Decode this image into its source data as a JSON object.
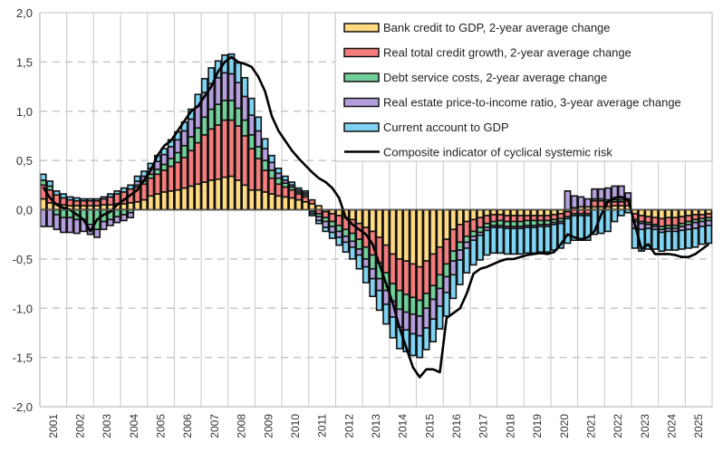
{
  "chart_data": {
    "type": "bar",
    "stacked": true,
    "frequency": "quarterly",
    "title": "",
    "xlabel": "",
    "ylabel": "",
    "ylim": [
      -2.0,
      2.0
    ],
    "yticks": [
      "2,0",
      "1,5",
      "1,0",
      "0,5",
      "0,0",
      "-0,5",
      "-1,0",
      "-1,5",
      "-2,0"
    ],
    "ytick_values": [
      2.0,
      1.5,
      1.0,
      0.5,
      0.0,
      -0.5,
      -1.0,
      -1.5,
      -2.0
    ],
    "xticks": [
      "2001",
      "2002",
      "2003",
      "2004",
      "2005",
      "2006",
      "2007",
      "2008",
      "2009",
      "2010",
      "2011",
      "2012",
      "2013",
      "2014",
      "2015",
      "2016",
      "2017",
      "2018",
      "2019",
      "2020",
      "2021",
      "2022",
      "2023",
      "2024",
      "2025"
    ],
    "start": "2001Q1",
    "n_quarters": 100,
    "grid": "horizontal dashed at y ticks; vertical solid at year boundaries",
    "legend_position": "top-right",
    "series": [
      {
        "name": "Bank credit to GDP, 2-year average change",
        "color": "#FFDA80",
        "kind": "bar",
        "values": [
          0.11,
          0.07,
          0.06,
          0.05,
          0.04,
          0.04,
          0.04,
          0.04,
          0.04,
          0.05,
          0.05,
          0.06,
          0.06,
          0.07,
          0.08,
          0.1,
          0.14,
          0.16,
          0.18,
          0.19,
          0.2,
          0.22,
          0.24,
          0.26,
          0.28,
          0.3,
          0.31,
          0.33,
          0.34,
          0.3,
          0.25,
          0.2,
          0.2,
          0.18,
          0.16,
          0.14,
          0.13,
          0.12,
          0.1,
          0.08,
          0.06,
          0.04,
          -0.02,
          -0.04,
          -0.06,
          -0.08,
          -0.1,
          -0.14,
          -0.18,
          -0.22,
          -0.28,
          -0.36,
          -0.45,
          -0.5,
          -0.52,
          -0.55,
          -0.58,
          -0.52,
          -0.45,
          -0.38,
          -0.3,
          -0.2,
          -0.15,
          -0.12,
          -0.1,
          -0.08,
          -0.06,
          -0.05,
          -0.05,
          -0.06,
          -0.06,
          -0.06,
          -0.06,
          -0.06,
          -0.06,
          -0.06,
          -0.05,
          -0.04,
          -0.02,
          0.02,
          0.03,
          0.03,
          0.03,
          0.03,
          0.03,
          0.04,
          0.04,
          0.04,
          -0.04,
          -0.06,
          -0.07,
          -0.08,
          -0.09,
          -0.08,
          -0.08,
          -0.07,
          -0.06,
          -0.05,
          -0.05,
          -0.04
        ]
      },
      {
        "name": "Real total credit growth, 2-year average change",
        "color": "#F47C7C",
        "kind": "bar",
        "values": [
          0.14,
          0.13,
          0.09,
          0.07,
          0.06,
          0.05,
          0.05,
          0.05,
          0.05,
          0.06,
          0.08,
          0.1,
          0.12,
          0.14,
          0.15,
          0.16,
          0.18,
          0.2,
          0.22,
          0.25,
          0.28,
          0.31,
          0.36,
          0.42,
          0.48,
          0.52,
          0.55,
          0.58,
          0.57,
          0.55,
          0.5,
          0.42,
          0.32,
          0.22,
          0.16,
          0.12,
          0.1,
          0.08,
          0.06,
          0.05,
          0.04,
          -0.04,
          -0.06,
          -0.08,
          -0.1,
          -0.12,
          -0.14,
          -0.16,
          -0.2,
          -0.24,
          -0.26,
          -0.28,
          -0.3,
          -0.32,
          -0.34,
          -0.34,
          -0.34,
          -0.33,
          -0.32,
          -0.28,
          -0.25,
          -0.22,
          -0.18,
          -0.15,
          -0.12,
          -0.1,
          -0.08,
          -0.07,
          -0.06,
          -0.06,
          -0.06,
          -0.06,
          -0.05,
          -0.05,
          -0.05,
          -0.05,
          -0.05,
          -0.05,
          -0.05,
          -0.04,
          -0.04,
          -0.04,
          0.06,
          0.06,
          0.05,
          0.04,
          0.04,
          0.05,
          -0.06,
          -0.06,
          -0.06,
          -0.07,
          -0.08,
          -0.08,
          -0.08,
          -0.07,
          -0.06,
          -0.05,
          -0.04,
          -0.04
        ]
      },
      {
        "name": "Debt service costs, 2-year average change",
        "color": "#72CF9A",
        "kind": "bar",
        "values": [
          0.05,
          0.04,
          -0.05,
          -0.08,
          -0.08,
          -0.1,
          -0.1,
          -0.15,
          -0.2,
          -0.12,
          -0.1,
          -0.07,
          -0.05,
          -0.03,
          0.02,
          0.03,
          0.04,
          0.05,
          0.06,
          0.08,
          0.1,
          0.12,
          0.14,
          0.15,
          0.18,
          0.2,
          0.21,
          0.2,
          0.2,
          0.18,
          0.16,
          0.14,
          0.12,
          0.1,
          0.08,
          0.06,
          0.04,
          0.03,
          0.02,
          0.02,
          -0.02,
          -0.03,
          -0.04,
          -0.05,
          -0.06,
          -0.07,
          -0.08,
          -0.1,
          -0.12,
          -0.14,
          -0.16,
          -0.18,
          -0.18,
          -0.19,
          -0.18,
          -0.17,
          -0.16,
          -0.15,
          -0.14,
          -0.14,
          -0.13,
          -0.1,
          -0.08,
          -0.06,
          -0.05,
          -0.05,
          -0.04,
          -0.04,
          -0.05,
          -0.05,
          -0.05,
          -0.05,
          -0.05,
          -0.05,
          -0.04,
          -0.04,
          -0.03,
          -0.03,
          -0.02,
          -0.02,
          -0.02,
          -0.02,
          0.02,
          0.02,
          0.02,
          0.02,
          0.02,
          0.02,
          -0.02,
          -0.02,
          -0.02,
          -0.02,
          -0.03,
          -0.03,
          -0.03,
          -0.03,
          -0.03,
          -0.03,
          -0.03,
          -0.03
        ]
      },
      {
        "name": "Real estate price-to-income ratio, 3-year average change",
        "color": "#B49FDC",
        "kind": "bar",
        "values": [
          -0.17,
          -0.17,
          -0.15,
          -0.15,
          -0.15,
          -0.14,
          -0.12,
          -0.1,
          -0.08,
          -0.08,
          -0.06,
          -0.06,
          -0.06,
          -0.05,
          0.04,
          0.05,
          0.06,
          0.08,
          0.1,
          0.12,
          0.13,
          0.15,
          0.18,
          0.22,
          0.25,
          0.26,
          0.27,
          0.28,
          0.27,
          0.26,
          0.24,
          0.2,
          0.16,
          0.12,
          0.08,
          0.05,
          0.03,
          0.02,
          0.02,
          0.02,
          -0.02,
          -0.04,
          -0.06,
          -0.06,
          -0.06,
          -0.06,
          -0.06,
          -0.06,
          -0.08,
          -0.1,
          -0.12,
          -0.14,
          -0.16,
          -0.18,
          -0.18,
          -0.2,
          -0.2,
          -0.2,
          -0.2,
          -0.18,
          -0.16,
          -0.14,
          -0.1,
          -0.06,
          -0.04,
          -0.03,
          -0.03,
          -0.02,
          -0.02,
          -0.02,
          -0.02,
          -0.02,
          -0.02,
          -0.02,
          -0.02,
          -0.02,
          -0.02,
          -0.02,
          0.19,
          0.12,
          0.1,
          0.08,
          0.1,
          0.1,
          0.12,
          0.14,
          0.14,
          0.06,
          -0.07,
          -0.06,
          -0.04,
          -0.03,
          -0.03,
          -0.03,
          -0.03,
          -0.04,
          -0.05,
          -0.06,
          -0.05,
          -0.05
        ]
      },
      {
        "name": "Current account to GDP",
        "color": "#7ED4F2",
        "kind": "bar",
        "values": [
          0.06,
          0.05,
          0.04,
          0.04,
          0.03,
          0.03,
          0.02,
          0.02,
          0.02,
          0.02,
          0.03,
          0.03,
          0.04,
          0.04,
          0.05,
          0.05,
          0.05,
          0.06,
          0.06,
          0.07,
          0.08,
          0.09,
          0.1,
          0.12,
          0.14,
          0.16,
          0.17,
          0.18,
          0.2,
          0.2,
          0.19,
          0.17,
          0.14,
          0.1,
          0.07,
          0.05,
          0.04,
          0.03,
          0.02,
          0.02,
          -0.02,
          -0.03,
          -0.04,
          -0.06,
          -0.08,
          -0.1,
          -0.12,
          -0.14,
          -0.16,
          -0.18,
          -0.2,
          -0.2,
          -0.21,
          -0.22,
          -0.22,
          -0.22,
          -0.22,
          -0.22,
          -0.23,
          -0.23,
          -0.24,
          -0.24,
          -0.25,
          -0.25,
          -0.25,
          -0.25,
          -0.25,
          -0.26,
          -0.26,
          -0.26,
          -0.26,
          -0.26,
          -0.26,
          -0.26,
          -0.26,
          -0.26,
          -0.26,
          -0.25,
          -0.25,
          -0.25,
          -0.25,
          -0.25,
          -0.25,
          -0.24,
          -0.22,
          -0.12,
          -0.06,
          -0.03,
          -0.2,
          -0.22,
          -0.21,
          -0.2,
          -0.19,
          -0.19,
          -0.19,
          -0.19,
          -0.19,
          -0.19,
          -0.18,
          -0.18
        ]
      },
      {
        "name": "Composite indicator of cyclical systemic risk",
        "color": "#000000",
        "kind": "line",
        "values": [
          0.23,
          0.12,
          0.05,
          0.02,
          0.0,
          -0.05,
          -0.1,
          -0.22,
          -0.1,
          -0.05,
          -0.02,
          0.05,
          0.1,
          0.15,
          0.2,
          0.3,
          0.4,
          0.55,
          0.65,
          0.7,
          0.8,
          0.9,
          1.0,
          1.05,
          1.15,
          1.25,
          1.4,
          1.5,
          1.55,
          1.5,
          1.48,
          1.45,
          1.35,
          1.2,
          0.95,
          0.8,
          0.7,
          0.6,
          0.52,
          0.45,
          0.38,
          0.32,
          0.28,
          0.22,
          0.12,
          -0.08,
          -0.15,
          -0.2,
          -0.25,
          -0.35,
          -0.55,
          -0.75,
          -0.95,
          -1.2,
          -1.4,
          -1.6,
          -1.7,
          -1.62,
          -1.62,
          -1.65,
          -1.1,
          -1.05,
          -1.0,
          -0.85,
          -0.65,
          -0.6,
          -0.58,
          -0.55,
          -0.52,
          -0.5,
          -0.5,
          -0.48,
          -0.46,
          -0.45,
          -0.44,
          -0.45,
          -0.43,
          -0.35,
          -0.25,
          -0.28,
          -0.3,
          -0.28,
          -0.22,
          -0.05,
          0.08,
          0.12,
          0.13,
          0.1,
          -0.15,
          -0.4,
          -0.35,
          -0.45,
          -0.45,
          -0.45,
          -0.46,
          -0.48,
          -0.48,
          -0.45,
          -0.4,
          -0.35
        ]
      }
    ]
  }
}
